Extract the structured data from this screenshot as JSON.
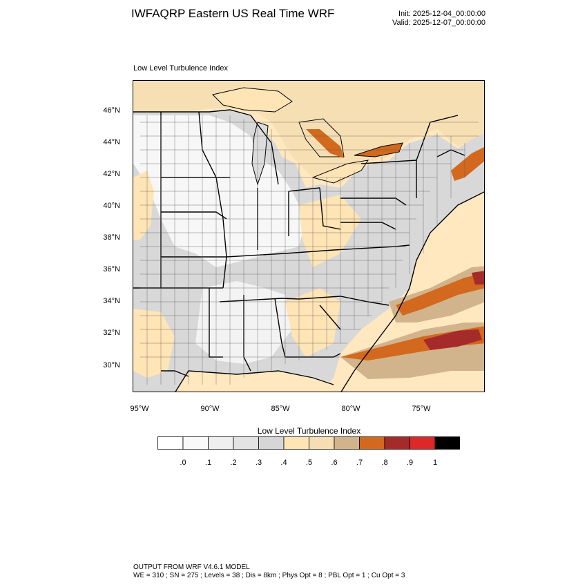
{
  "header": {
    "title": "IWFAQRP Eastern US Real Time WRF",
    "init": "Init: 2025-12-04_00:00:00",
    "valid": "Valid: 2025-12-07_00:00:00"
  },
  "map": {
    "panel_title": "Low Level Turbulence Index",
    "lat_labels": [
      "46°N",
      "44°N",
      "42°N",
      "40°N",
      "38°N",
      "36°N",
      "34°N",
      "32°N",
      "30°N"
    ],
    "lon_labels": [
      "95°W",
      "90°W",
      "85°W",
      "80°W",
      "75°W"
    ],
    "colors": {
      "ocean_light": "#ffe8c0",
      "land_gray": "#d8d8d8",
      "land_white": "#f7f7f7",
      "orange_dark": "#d2691e",
      "brown_red": "#a52a2a",
      "tan": "#d2b48c"
    }
  },
  "colorbar": {
    "title": "Low Level Turbulence Index",
    "colors": [
      "#ffffff",
      "#f9f9f9",
      "#efefef",
      "#e3e3e3",
      "#d6d6d6",
      "#ffe4b5",
      "#f5deb3",
      "#d2b48c",
      "#d2691e",
      "#a52a2a",
      "#dc2828",
      "#000000"
    ],
    "labels": [
      ".0",
      ".1",
      ".2",
      ".3",
      ".4",
      ".5",
      ".6",
      ".7",
      ".8",
      ".9",
      "1"
    ]
  },
  "footer": {
    "line1": "OUTPUT FROM WRF V4.6.1 MODEL",
    "line2": "WE = 310 ; SN = 275 ; Levels = 38 ; Dis = 8km ; Phys Opt = 8 ; PBL Opt = 1 ; Cu Opt = 3"
  }
}
